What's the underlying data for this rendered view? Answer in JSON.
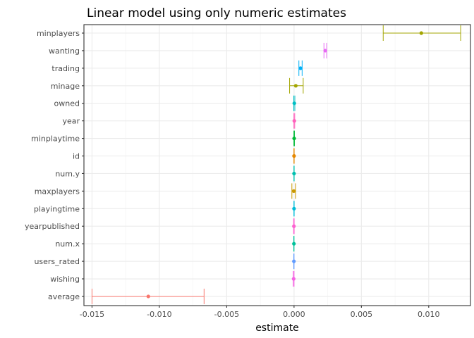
{
  "chart_data": {
    "type": "errorbar",
    "title": "Linear model using only numeric estimates",
    "xlabel": "estimate",
    "ylabel": "",
    "xlim": [
      -0.0156,
      0.0131
    ],
    "x_ticks": [
      -0.015,
      -0.01,
      -0.005,
      0.0,
      0.005,
      0.01
    ],
    "x_tick_labels": [
      "-0.015",
      "-0.010",
      "-0.005",
      "0.000",
      "0.005",
      "0.010"
    ],
    "grid": true,
    "legend": "none",
    "terms": [
      {
        "term": "minplayers",
        "estimate": 0.00945,
        "low": 0.00662,
        "high": 0.01237,
        "color": "#A3A500"
      },
      {
        "term": "wanting",
        "estimate": 0.00232,
        "low": 0.00222,
        "high": 0.00242,
        "color": "#E76BF3"
      },
      {
        "term": "trading",
        "estimate": 0.00048,
        "low": 0.00036,
        "high": 0.0006,
        "color": "#00B0F6"
      },
      {
        "term": "minage",
        "estimate": 0.00013,
        "low": -0.00033,
        "high": 0.00068,
        "color": "#A3A500"
      },
      {
        "term": "owned",
        "estimate": 2e-05,
        "low": -2e-05,
        "high": 6e-05,
        "color": "#00BFC4"
      },
      {
        "term": "year",
        "estimate": 2e-05,
        "low": -1e-05,
        "high": 5e-05,
        "color": "#FF62BC"
      },
      {
        "term": "minplaytime",
        "estimate": 1e-05,
        "low": -1e-05,
        "high": 3e-05,
        "color": "#00BA38"
      },
      {
        "term": "id",
        "estimate": 0.0,
        "low": -1e-05,
        "high": 1e-05,
        "color": "#E58700"
      },
      {
        "term": "num.y",
        "estimate": 0.0,
        "low": -1e-05,
        "high": 1e-05,
        "color": "#00C0AF"
      },
      {
        "term": "maxplayers",
        "estimate": -2e-05,
        "low": -0.00016,
        "high": 0.00011,
        "color": "#C99800"
      },
      {
        "term": "playingtime",
        "estimate": 0.0,
        "low": -1e-05,
        "high": 1e-05,
        "color": "#00BCD8"
      },
      {
        "term": "yearpublished",
        "estimate": -1e-05,
        "low": -3e-05,
        "high": 1e-05,
        "color": "#FD61D1"
      },
      {
        "term": "num.x",
        "estimate": -1e-05,
        "low": -2e-05,
        "high": 0.0,
        "color": "#00C19A"
      },
      {
        "term": "users_rated",
        "estimate": -1e-05,
        "low": -2e-05,
        "high": 0.0,
        "color": "#619CFF"
      },
      {
        "term": "wishing",
        "estimate": -3e-05,
        "low": -6e-05,
        "high": 0.0,
        "color": "#F564E3"
      },
      {
        "term": "average",
        "estimate": -0.01082,
        "low": -0.015,
        "high": -0.00668,
        "color": "#F8766D"
      }
    ]
  }
}
